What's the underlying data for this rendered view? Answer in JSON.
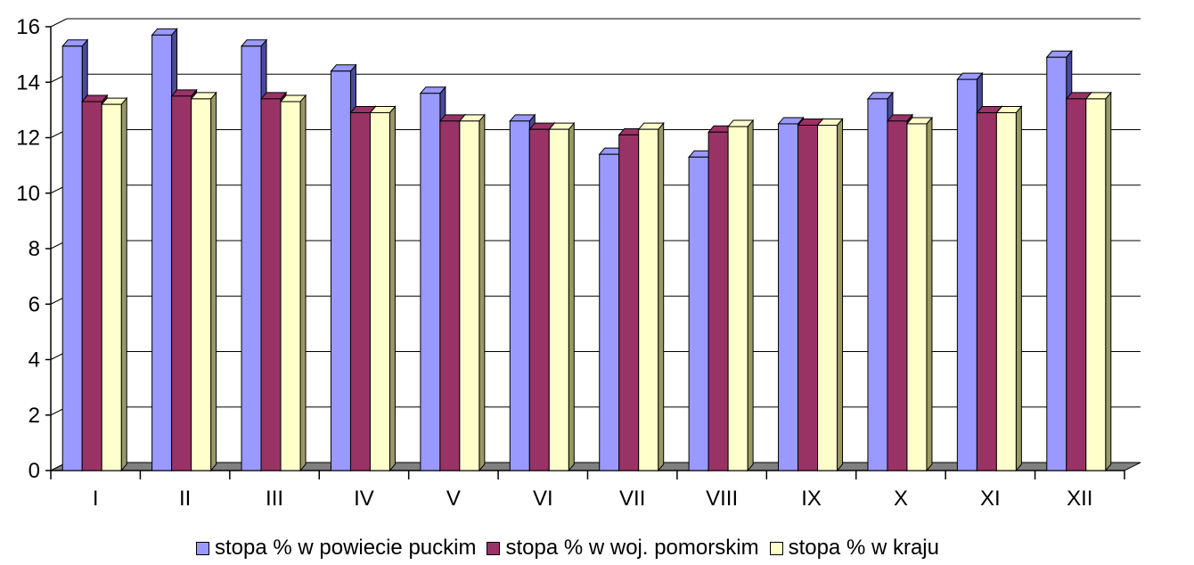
{
  "chart_data": {
    "type": "bar",
    "title": "",
    "xlabel": "",
    "ylabel": "",
    "ylim": [
      0,
      16
    ],
    "y_ticks": [
      "0",
      "2",
      "4",
      "6",
      "8",
      "10",
      "12",
      "14",
      "16"
    ],
    "grid": true,
    "legend_position": "bottom",
    "categories": [
      "I",
      "II",
      "III",
      "IV",
      "V",
      "VI",
      "VII",
      "VIII",
      "IX",
      "X",
      "XI",
      "XII"
    ],
    "series": [
      {
        "name": "stopa % w powiecie puckim",
        "color": "#9999ff",
        "side_color": "#4a4a99",
        "values": [
          15.3,
          15.7,
          15.3,
          14.4,
          13.6,
          12.6,
          11.4,
          11.3,
          12.5,
          13.4,
          14.1,
          14.9
        ]
      },
      {
        "name": "stopa % w woj. pomorskim",
        "color": "#993366",
        "side_color": "#4d1933",
        "values": [
          13.3,
          13.5,
          13.4,
          12.9,
          12.6,
          12.3,
          12.1,
          12.2,
          12.45,
          12.6,
          12.9,
          13.4
        ]
      },
      {
        "name": "stopa % w kraju",
        "color": "#ffffcc",
        "side_color": "#999966",
        "values": [
          13.2,
          13.4,
          13.3,
          12.9,
          12.6,
          12.3,
          12.3,
          12.4,
          12.45,
          12.5,
          12.9,
          13.4
        ]
      }
    ]
  }
}
